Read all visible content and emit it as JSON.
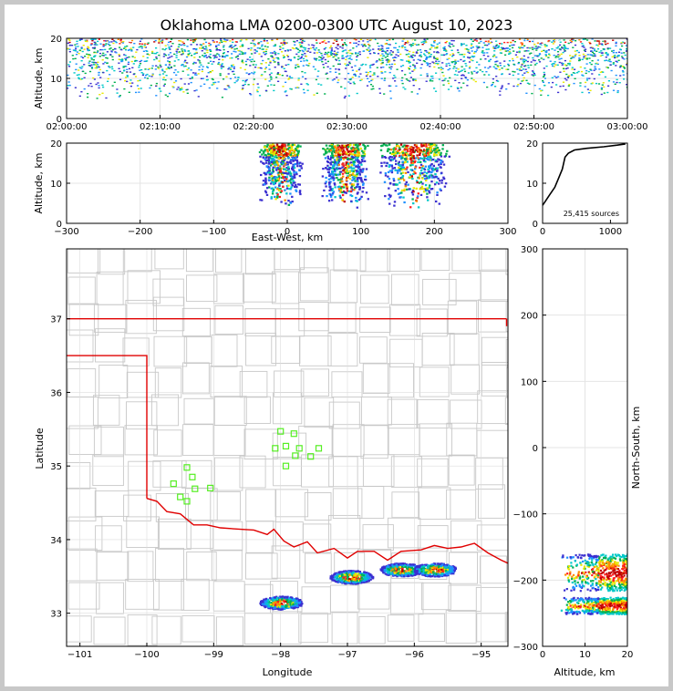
{
  "title": "Oklahoma LMA 0200-0300 UTC August 10, 2023",
  "colors": {
    "state_border": "#e00000",
    "county_lines": "#c8c8c8",
    "station_marker": "#55ee22",
    "density_palette": [
      "#3a2fd0",
      "#1e90ff",
      "#00c8c8",
      "#00b050",
      "#e8e800",
      "#ff8c00",
      "#ff2020",
      "#c00000",
      "#ffffff"
    ]
  },
  "chart_data": [
    {
      "id": "time_height",
      "type": "heatmap",
      "ylabel": "Altitude, km",
      "xlabel": "",
      "xlim": [
        "02:00:00",
        "03:00:00"
      ],
      "ylim": [
        0,
        20
      ],
      "xticks": [
        "02:00:00",
        "02:10:00",
        "02:20:00",
        "02:30:00",
        "02:40:00",
        "02:50:00",
        "03:00:00"
      ],
      "yticks": [
        "0",
        "10",
        "20"
      ],
      "grid": true,
      "source_altitude_band_km": [
        5,
        20
      ]
    },
    {
      "id": "ew_altitude",
      "type": "heatmap",
      "xlabel": "East-West, km",
      "ylabel": "Altitude, km",
      "xlim": [
        -300,
        300
      ],
      "ylim": [
        0,
        20
      ],
      "xticks": [
        "-300",
        "-200",
        "-100",
        "0",
        "100",
        "200",
        "300"
      ],
      "yticks": [
        "0",
        "10",
        "20"
      ],
      "grid": true,
      "clusters": [
        {
          "x_range_km": [
            -40,
            20
          ],
          "alt_range_km": [
            4,
            20
          ]
        },
        {
          "x_range_km": [
            45,
            110
          ],
          "alt_range_km": [
            4,
            20
          ]
        },
        {
          "x_range_km": [
            120,
            220
          ],
          "alt_range_km": [
            4,
            20
          ]
        }
      ]
    },
    {
      "id": "altitude_histogram",
      "type": "line",
      "xlabel": "",
      "ylabel": "",
      "xlim": [
        0,
        1250
      ],
      "ylim": [
        0,
        20
      ],
      "xticks": [
        "0",
        "1000"
      ],
      "yticks": [
        "0",
        "10",
        "20"
      ],
      "annotation": "25,415 sources",
      "x": [
        0,
        40,
        100,
        180,
        230,
        290,
        310,
        330,
        380,
        470,
        650,
        900,
        1100,
        1220
      ],
      "y": [
        4.5,
        5.5,
        7.0,
        9.0,
        11.0,
        13.5,
        15.0,
        16.5,
        17.5,
        18.3,
        18.7,
        19.1,
        19.5,
        19.8
      ]
    },
    {
      "id": "plan_view",
      "type": "heatmap",
      "xlabel": "Longitude",
      "ylabel": "Latitude",
      "xlim": [
        -101.2,
        -94.6
      ],
      "ylim": [
        32.55,
        37.95
      ],
      "xticks": [
        "-101",
        "-100",
        "-99",
        "-98",
        "-97",
        "-96",
        "-95"
      ],
      "yticks": [
        "33",
        "34",
        "35",
        "36",
        "37"
      ],
      "grid": true,
      "storms": [
        {
          "lon": -98.0,
          "lat": 33.15
        },
        {
          "lon": -96.95,
          "lat": 33.5
        },
        {
          "lon": -96.2,
          "lat": 33.6
        },
        {
          "lon": -95.7,
          "lat": 33.6
        }
      ],
      "stations": [
        {
          "lon": -98.0,
          "lat": 35.47
        },
        {
          "lon": -97.8,
          "lat": 35.44
        },
        {
          "lon": -98.08,
          "lat": 35.24
        },
        {
          "lon": -97.92,
          "lat": 35.27
        },
        {
          "lon": -97.72,
          "lat": 35.24
        },
        {
          "lon": -97.78,
          "lat": 35.14
        },
        {
          "lon": -97.55,
          "lat": 35.13
        },
        {
          "lon": -97.43,
          "lat": 35.24
        },
        {
          "lon": -97.92,
          "lat": 35.0
        },
        {
          "lon": -99.4,
          "lat": 34.98
        },
        {
          "lon": -99.32,
          "lat": 34.85
        },
        {
          "lon": -99.6,
          "lat": 34.76
        },
        {
          "lon": -99.28,
          "lat": 34.69
        },
        {
          "lon": -99.05,
          "lat": 34.7
        },
        {
          "lon": -99.5,
          "lat": 34.58
        },
        {
          "lon": -99.4,
          "lat": 34.52
        }
      ]
    },
    {
      "id": "altitude_ns",
      "type": "heatmap",
      "xlabel": "Altitude, km",
      "ylabel": "North-South, km",
      "xlim": [
        0,
        20
      ],
      "ylim": [
        -300,
        300
      ],
      "xticks": [
        "0",
        "10",
        "20"
      ],
      "yticks": [
        "-300",
        "-200",
        "-100",
        "0",
        "100",
        "200",
        "300"
      ],
      "grid": true,
      "clusters": [
        {
          "ns_range_km": [
            -215,
            -160
          ],
          "alt_range_km": [
            4,
            20
          ]
        },
        {
          "ns_range_km": [
            -250,
            -225
          ],
          "alt_range_km": [
            4,
            20
          ]
        }
      ]
    }
  ]
}
